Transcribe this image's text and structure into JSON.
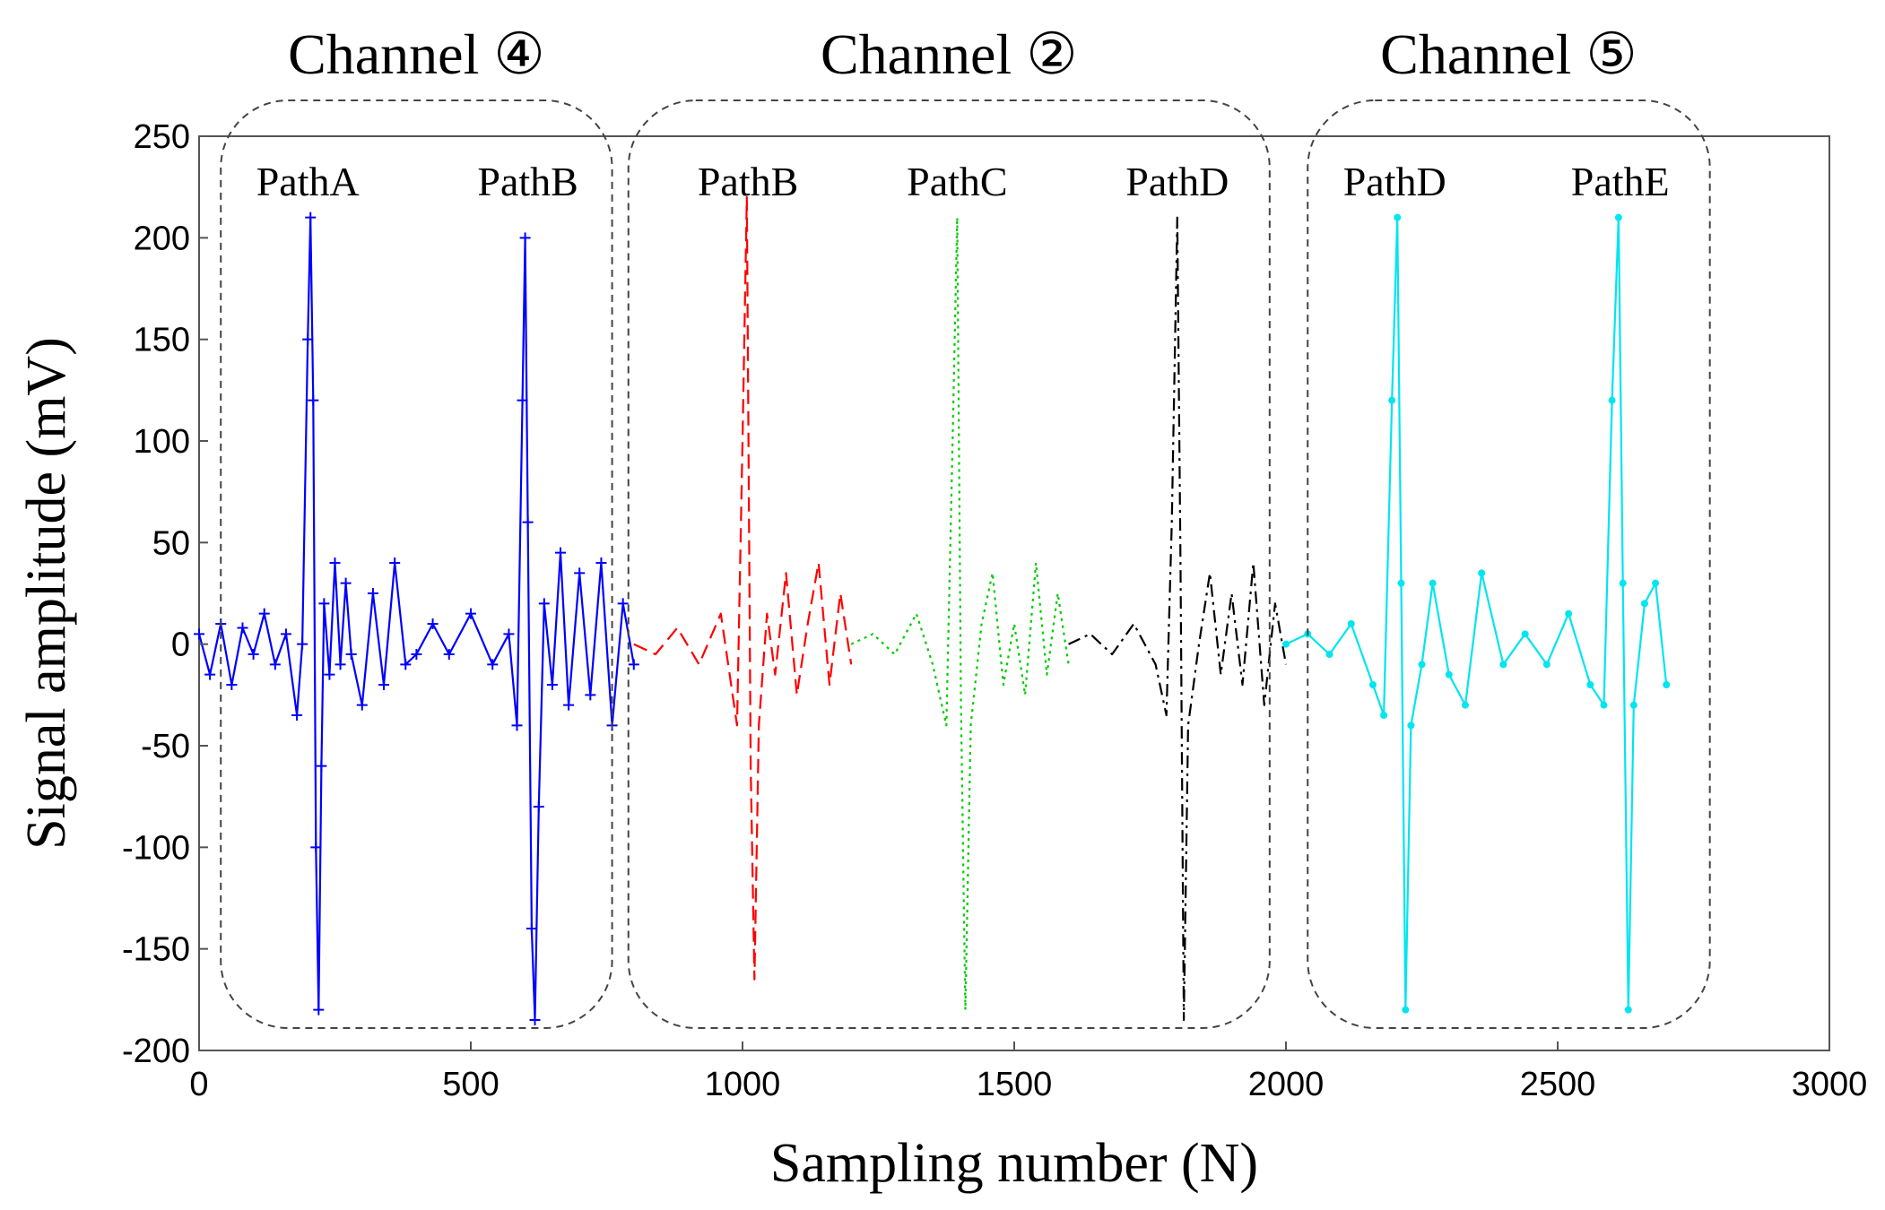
{
  "chart_data": {
    "type": "line",
    "title": "",
    "xlabel": "Sampling number (N)",
    "ylabel": "Signal amplitude (mV)",
    "xlim": [
      0,
      3000
    ],
    "ylim": [
      -200,
      250
    ],
    "xticks": [
      0,
      500,
      1000,
      1500,
      2000,
      2500,
      3000
    ],
    "yticks": [
      250,
      200,
      150,
      100,
      50,
      0,
      -50,
      -100,
      -150,
      -200
    ],
    "grid": false,
    "groups": [
      {
        "title": "Channel ④",
        "x_range": [
          40,
          760
        ],
        "paths": [
          "PathA",
          "PathB"
        ]
      },
      {
        "title": "Channel ②",
        "x_range": [
          790,
          1970
        ],
        "paths": [
          "PathB",
          "PathC",
          "PathD"
        ]
      },
      {
        "title": "Channel ⑤",
        "x_range": [
          2040,
          2780
        ],
        "paths": [
          "PathD",
          "PathE"
        ]
      }
    ],
    "path_labels": [
      {
        "text": "PathA",
        "x": 200
      },
      {
        "text": "PathB",
        "x": 605
      },
      {
        "text": "PathB",
        "x": 1010
      },
      {
        "text": "PathC",
        "x": 1395
      },
      {
        "text": "PathD",
        "x": 1800
      },
      {
        "text": "PathD",
        "x": 2200
      },
      {
        "text": "PathE",
        "x": 2615
      }
    ],
    "series": [
      {
        "color": "#0000ff",
        "style": "solid",
        "marker": "plus",
        "x": [
          0,
          20,
          40,
          60,
          80,
          100,
          120,
          140,
          160,
          180,
          190,
          200,
          205,
          210,
          215,
          220,
          225,
          230,
          240,
          250,
          260,
          270,
          280,
          300,
          320,
          340,
          360,
          380,
          400,
          430,
          460,
          500,
          540,
          570,
          585,
          595,
          600,
          605,
          612,
          618,
          625,
          635,
          650,
          665,
          680,
          700,
          720,
          740,
          760,
          780,
          800
        ],
        "y": [
          5,
          -15,
          10,
          -20,
          8,
          -5,
          15,
          -10,
          5,
          -35,
          0,
          150,
          210,
          120,
          -100,
          -180,
          -60,
          20,
          -15,
          40,
          -10,
          30,
          -5,
          -30,
          25,
          -20,
          40,
          -10,
          -5,
          10,
          -5,
          15,
          -10,
          5,
          -40,
          120,
          200,
          60,
          -140,
          -185,
          -80,
          20,
          -20,
          45,
          -30,
          35,
          -25,
          40,
          -40,
          20,
          -10
        ]
      },
      {
        "color": "#ff0000",
        "style": "dashed",
        "marker": "none",
        "x": [
          800,
          840,
          880,
          920,
          960,
          990,
          1000,
          1008,
          1015,
          1022,
          1030,
          1045,
          1060,
          1080,
          1100,
          1120,
          1140,
          1160,
          1180,
          1200
        ],
        "y": [
          0,
          -5,
          8,
          -10,
          15,
          -40,
          100,
          220,
          -60,
          -165,
          -40,
          15,
          -15,
          35,
          -25,
          10,
          40,
          -20,
          25,
          -10
        ]
      },
      {
        "color": "#00cc00",
        "style": "dotted",
        "marker": "none",
        "x": [
          1200,
          1240,
          1280,
          1320,
          1350,
          1375,
          1385,
          1395,
          1402,
          1410,
          1420,
          1440,
          1460,
          1480,
          1500,
          1520,
          1540,
          1560,
          1580,
          1600
        ],
        "y": [
          0,
          5,
          -5,
          15,
          -10,
          -40,
          80,
          210,
          -30,
          -180,
          -40,
          10,
          35,
          -20,
          10,
          -25,
          40,
          -15,
          25,
          -10
        ]
      },
      {
        "color": "#000000",
        "style": "dashdot",
        "marker": "none",
        "x": [
          1600,
          1640,
          1680,
          1720,
          1760,
          1780,
          1790,
          1800,
          1806,
          1812,
          1820,
          1840,
          1860,
          1880,
          1900,
          1920,
          1940,
          1960,
          1980,
          2000
        ],
        "y": [
          0,
          5,
          -5,
          10,
          -10,
          -35,
          60,
          210,
          40,
          -185,
          -40,
          0,
          35,
          -15,
          25,
          -20,
          40,
          -30,
          20,
          -10
        ]
      },
      {
        "color": "#00e5ee",
        "style": "solid",
        "marker": "star",
        "x": [
          2000,
          2040,
          2080,
          2120,
          2160,
          2180,
          2195,
          2205,
          2212,
          2220,
          2230,
          2250,
          2270,
          2300,
          2330,
          2360,
          2400,
          2440,
          2480,
          2520,
          2560,
          2585,
          2600,
          2612,
          2620,
          2630,
          2640,
          2660,
          2680,
          2700
        ],
        "y": [
          0,
          5,
          -5,
          10,
          -20,
          -35,
          120,
          210,
          30,
          -180,
          -40,
          -10,
          30,
          -15,
          -30,
          35,
          -10,
          5,
          -10,
          15,
          -20,
          -30,
          120,
          210,
          30,
          -180,
          -30,
          20,
          30,
          -20
        ]
      }
    ]
  }
}
